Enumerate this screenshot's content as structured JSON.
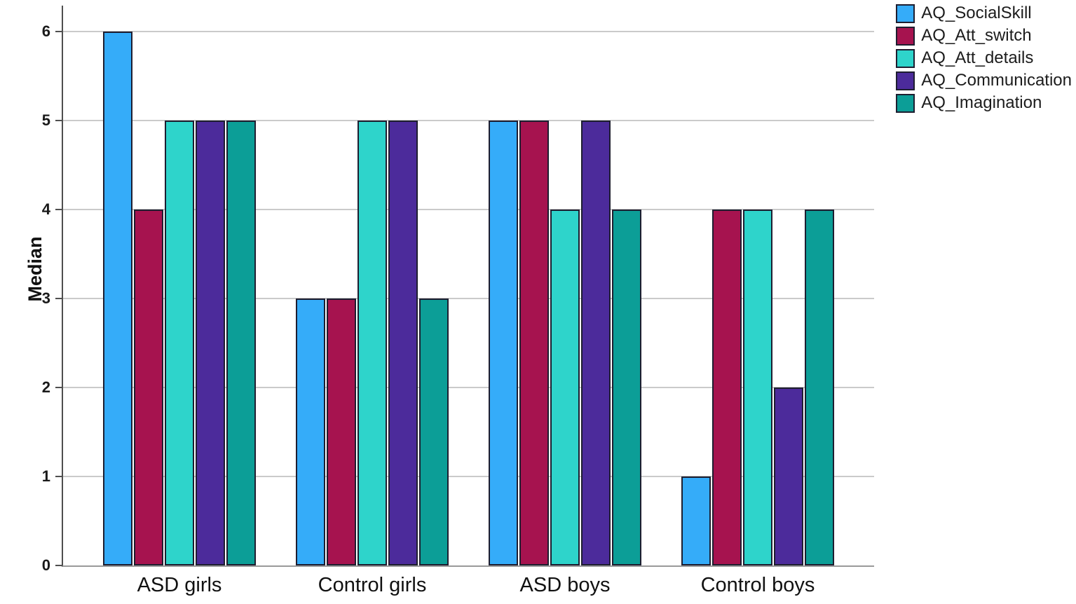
{
  "chart_data": {
    "type": "bar",
    "title": "",
    "xlabel": "",
    "ylabel": "Median",
    "categories": [
      "ASD girls",
      "Control girls",
      "ASD boys",
      "Control boys"
    ],
    "series": [
      {
        "name": "AQ_SocialSkill",
        "color": "#35ACF9",
        "values": [
          6,
          3,
          5,
          1
        ]
      },
      {
        "name": "AQ_Att_switch",
        "color": "#A6134F",
        "values": [
          4,
          3,
          5,
          4
        ]
      },
      {
        "name": "AQ_Att_details",
        "color": "#2ED4CB",
        "values": [
          5,
          5,
          4,
          4
        ]
      },
      {
        "name": "AQ_Communication",
        "color": "#4C2B9B",
        "values": [
          5,
          5,
          5,
          2
        ]
      },
      {
        "name": "AQ_Imagination",
        "color": "#0C9E97",
        "values": [
          5,
          3,
          4,
          4
        ]
      }
    ],
    "ylim": [
      0,
      6
    ],
    "yticks": [
      0,
      1,
      2,
      3,
      4,
      5,
      6
    ],
    "grid": true,
    "legend_position": "top-right"
  },
  "style": {
    "grid_color": "#cacaca",
    "x_axis_color": "#9a9a9a",
    "y_axis_color": "#4f4f4f",
    "bar_border_color": "#1e1e30",
    "text_color": "#111111"
  }
}
